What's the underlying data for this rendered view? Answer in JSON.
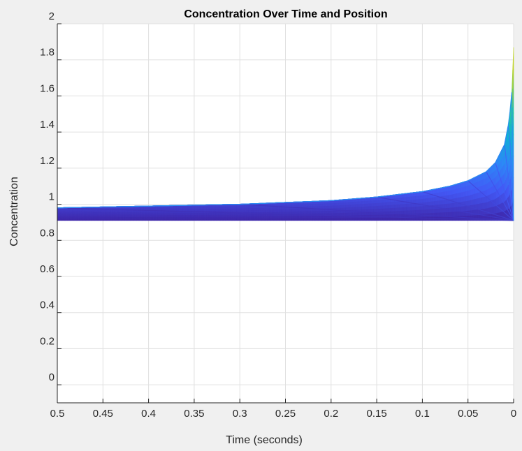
{
  "chart_data": {
    "type": "surface",
    "title": "Concentration Over Time and Position",
    "xlabel": "Time (seconds)",
    "ylabel": "Concentration",
    "xlim": [
      0.5,
      0
    ],
    "ylim": [
      -0.1,
      2
    ],
    "x_reversed": true,
    "x_ticks": [
      0.5,
      0.45,
      0.4,
      0.35,
      0.3,
      0.25,
      0.2,
      0.15,
      0.1,
      0.05,
      0
    ],
    "x_tick_labels": [
      "0.5",
      "0.45",
      "0.4",
      "0.35",
      "0.3",
      "0.25",
      "0.2",
      "0.15",
      "0.1",
      "0.05",
      "0"
    ],
    "y_ticks": [
      0,
      0.2,
      0.4,
      0.6,
      0.8,
      1,
      1.2,
      1.4,
      1.6,
      1.8,
      2
    ],
    "y_tick_labels": [
      "0",
      "0.2",
      "0.4",
      "0.6",
      "0.8",
      "1",
      "1.2",
      "1.4",
      "1.6",
      "1.8",
      "2"
    ],
    "grid": true,
    "colormap": [
      "#3e26a8",
      "#4358f5",
      "#2e87f7",
      "#0fb1d3",
      "#2fcb97",
      "#acc832",
      "#f9fb15"
    ],
    "surface_top": {
      "time": [
        0.5,
        0.4,
        0.3,
        0.2,
        0.15,
        0.1,
        0.07,
        0.05,
        0.03,
        0.02,
        0.01,
        0.005,
        0.002,
        0
      ],
      "concentration": [
        0.98,
        0.99,
        1.0,
        1.02,
        1.04,
        1.07,
        1.1,
        1.13,
        1.18,
        1.23,
        1.33,
        1.46,
        1.62,
        1.87
      ]
    },
    "surface_bottom": {
      "time": [
        0.5,
        0
      ],
      "concentration": [
        0.91,
        0.91
      ]
    },
    "slice_peaks": {
      "time": [
        0.5,
        0.3,
        0.15,
        0.1,
        0.05,
        0.03,
        0.02,
        0.01,
        0.005,
        0.002
      ],
      "concentration": [
        0.98,
        1.0,
        1.04,
        1.07,
        1.13,
        1.18,
        1.23,
        1.33,
        1.46,
        1.62
      ]
    }
  }
}
